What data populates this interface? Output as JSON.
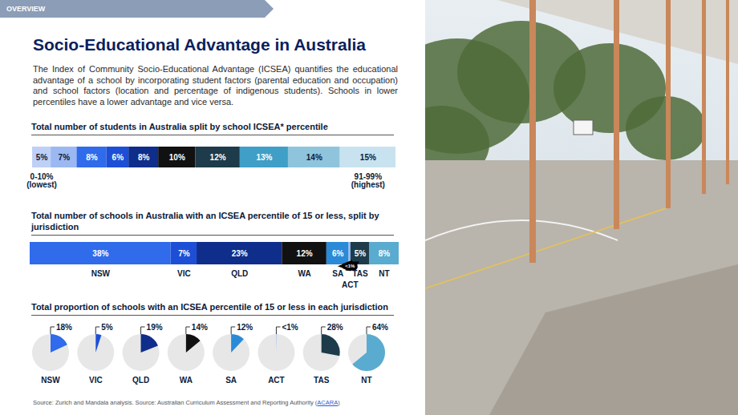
{
  "overview": "OVERVIEW",
  "title": "Socio-Educational Advantage in Australia",
  "description": "The Index of Community Socio-Educational Advantage (ICSEA) quantifies the educational advantage of a school by incorporating student factors (parental education and occupation) and school factors (location and percentage of indigenous students). Schools in lower percentiles have a lower advantage and vice versa.",
  "source": "Source: Zurich and Mandala analysis. Source: Australian Curriculum Assessment and Reporting Authority (ACARA)",
  "source_link": "ACARA",
  "chart_data": [
    {
      "type": "bar",
      "orientation": "horizontal",
      "stacked": true,
      "title": "Total number of students in Australia split by school ICSEA* percentile",
      "categories": [
        "0-10% (lowest)",
        null,
        null,
        null,
        null,
        null,
        null,
        null,
        null,
        "91-99% (highest)"
      ],
      "values": [
        5,
        7,
        8,
        6,
        8,
        10,
        12,
        13,
        14,
        15
      ],
      "value_labels": [
        "5%",
        "7%",
        "8%",
        "6%",
        "8%",
        "10%",
        "12%",
        "13%",
        "14%",
        "15%"
      ],
      "colors": [
        "#bfd0f6",
        "#9bb8f2",
        "#2f6bea",
        "#1d4fd6",
        "#0f2d8a",
        "#111111",
        "#1d3b4a",
        "#3f9fc7",
        "#8ec5dc",
        "#c8e3ef"
      ],
      "xlim": [
        0,
        98
      ],
      "data_labels": true,
      "tick_labels": false
    },
    {
      "type": "bar",
      "orientation": "horizontal",
      "stacked": true,
      "title": "Total number of schools in Australia with an ICSEA percentile of 15 or less, split by jurisdiction",
      "categories": [
        "NSW",
        "VIC",
        "QLD",
        "WA",
        "SA",
        "ACT",
        "TAS",
        "NT"
      ],
      "values": [
        38,
        7,
        23,
        12,
        6,
        0.5,
        5,
        8
      ],
      "value_labels": [
        "38%",
        "7%",
        "23%",
        "12%",
        "6%",
        "<1%",
        "5%",
        "8%"
      ],
      "colors": [
        "#2f6bea",
        "#1d4fd6",
        "#0f2d8a",
        "#111111",
        "#2a8ad8",
        "#9bb8f2",
        "#1d3b4a",
        "#5aabd0"
      ],
      "xlim": [
        0,
        99.5
      ],
      "data_labels": true,
      "tick_labels": false
    },
    {
      "type": "pie",
      "title": "Total proportion of schools with an ICSEA percentile of 15 or less in each jurisdiction",
      "categories": [
        "NSW",
        "VIC",
        "QLD",
        "WA",
        "SA",
        "ACT",
        "TAS",
        "NT"
      ],
      "values": [
        18,
        5,
        19,
        14,
        12,
        0.5,
        28,
        64
      ],
      "value_labels": [
        "18%",
        "5%",
        "19%",
        "14%",
        "12%",
        "<1%",
        "28%",
        "64%"
      ],
      "colors": [
        "#2f6bea",
        "#1d4fd6",
        "#0f2d8a",
        "#111111",
        "#2a8ad8",
        "#9bb8f2",
        "#1d3b4a",
        "#5aabd0"
      ],
      "data_labels": true
    }
  ]
}
